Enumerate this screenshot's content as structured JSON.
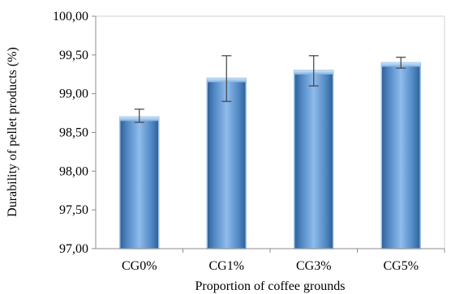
{
  "chart_data": {
    "type": "bar",
    "categories": [
      "CG0%",
      "CG1%",
      "CG3%",
      "CG5%"
    ],
    "values": [
      98.7,
      99.2,
      99.3,
      99.4
    ],
    "error_low": [
      98.63,
      98.9,
      99.1,
      99.33
    ],
    "error_high": [
      98.8,
      99.49,
      99.49,
      99.47
    ],
    "xlabel": "Proportion of coffee grounds",
    "ylabel": "Durability of pellet products (%)",
    "ylim": [
      97.0,
      100.0
    ],
    "yticks": [
      "97,00",
      "97,50",
      "98,00",
      "98,50",
      "99,00",
      "99,50",
      "100,00"
    ],
    "bar_color": "#5b9bd5",
    "grid": false
  }
}
